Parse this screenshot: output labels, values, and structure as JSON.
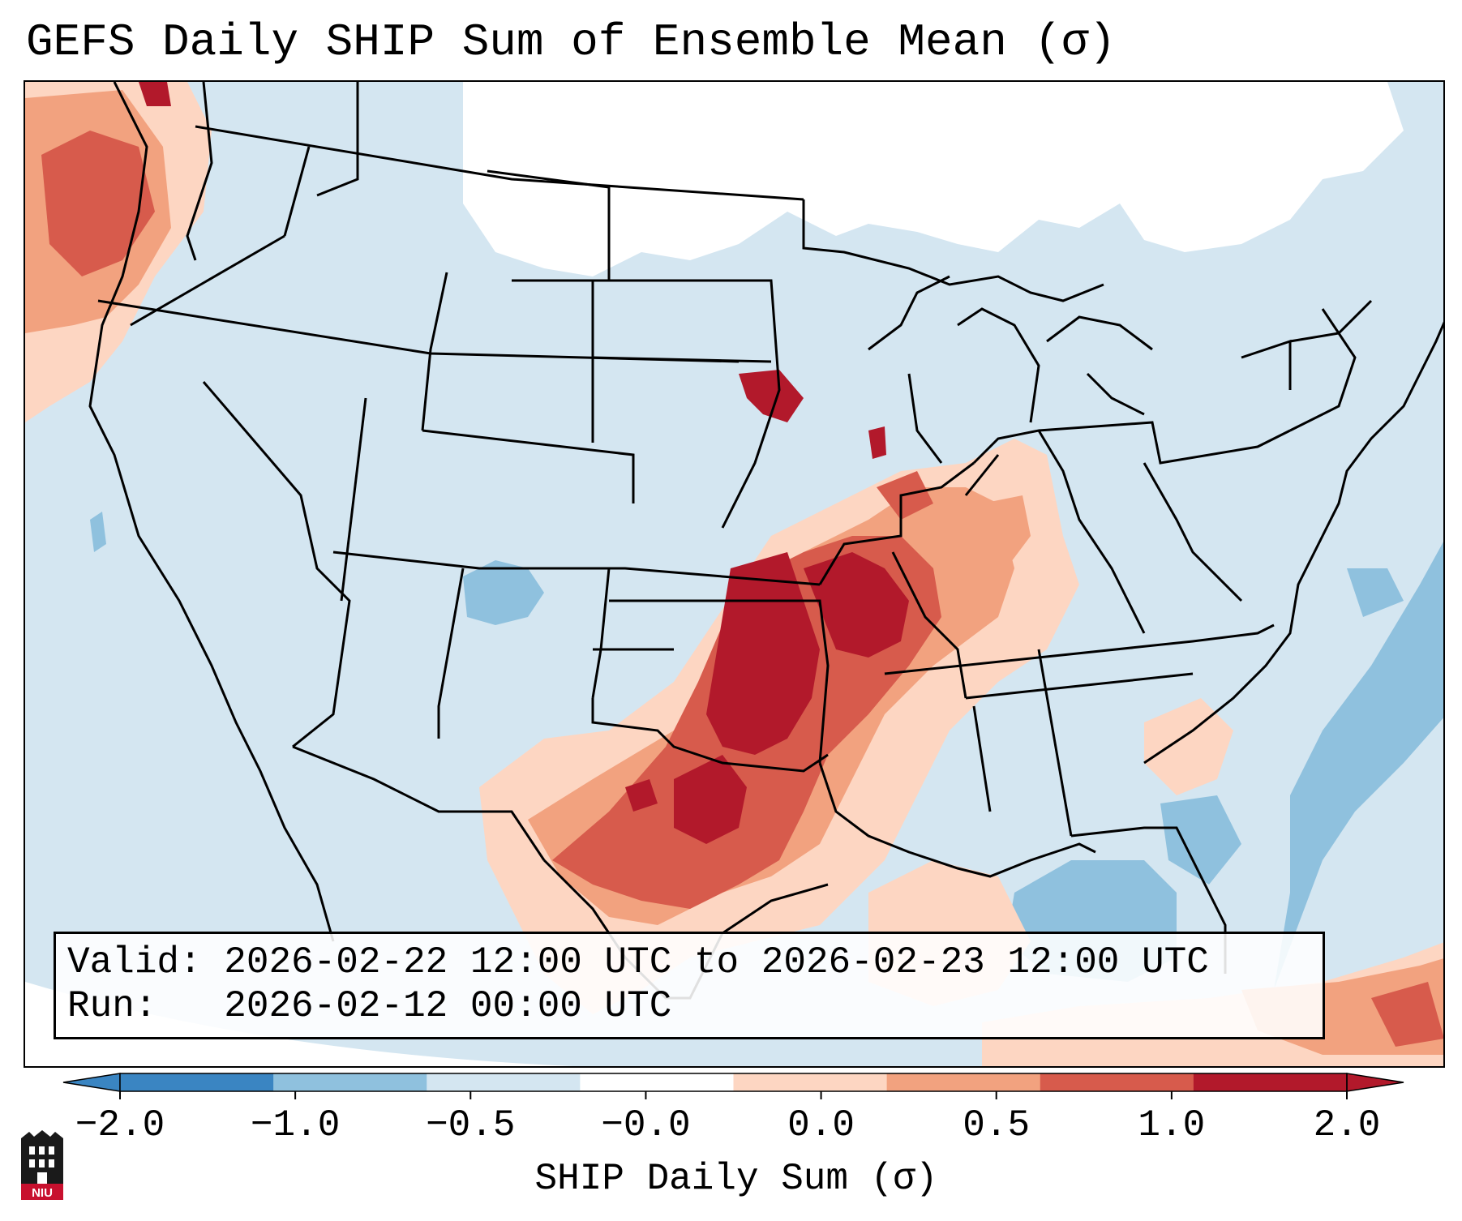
{
  "title": "GEFS Daily SHIP Sum of Ensemble Mean (σ)",
  "valid_line": "Valid: 2026-02-22 12:00 UTC to 2026-02-23 12:00 UTC",
  "run_line": "Run:   2026-02-12 00:00 UTC",
  "colorbar": {
    "label": "SHIP Daily Sum (σ)",
    "ticks": [
      "−2.0",
      "−1.0",
      "−0.5",
      "−0.0",
      "0.0",
      "0.5",
      "1.0",
      "2.0"
    ],
    "colors": [
      "#3a85c2",
      "#8fc1de",
      "#d4e6f1",
      "#ffffff",
      "#fdd6c2",
      "#f2a27f",
      "#d75b4c",
      "#b2192b"
    ],
    "extend": "both"
  },
  "logo": {
    "text": "NIU",
    "name": "niu-logo"
  },
  "map": {
    "region": "Contiguous United States",
    "colors": {
      "background": "#d4e6f1",
      "white_area": "#ffffff",
      "mid_blue": "#8fc1de",
      "light_red": "#fdd6c2",
      "salmon": "#f2a27f",
      "red": "#d75b4c",
      "dark_red": "#b2192b",
      "outline": "#000000"
    }
  }
}
